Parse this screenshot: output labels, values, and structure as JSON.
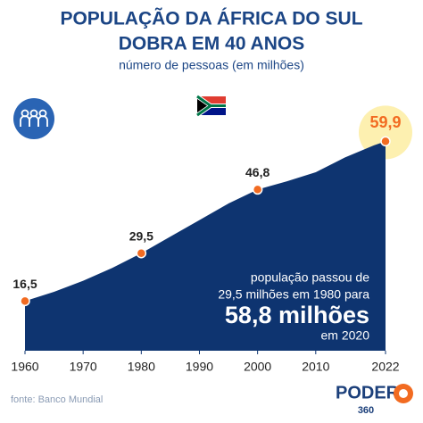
{
  "chart_data": {
    "type": "area",
    "title_lines": [
      "POPULAÇÃO DA ÁFRICA DO SUL",
      "DOBRA EM 40 ANOS"
    ],
    "subtitle": "número de pessoas (em milhões)",
    "x": [
      1960,
      1965,
      1970,
      1975,
      1980,
      1985,
      1990,
      1995,
      2000,
      2005,
      2010,
      2015,
      2020,
      2022
    ],
    "values": [
      16.5,
      19.0,
      22.0,
      25.5,
      29.5,
      34.0,
      38.5,
      43.0,
      46.8,
      49.0,
      51.5,
      55.5,
      58.8,
      59.9
    ],
    "value_labels": [
      "16,5",
      null,
      null,
      null,
      "29,5",
      null,
      null,
      null,
      "46,8",
      null,
      null,
      null,
      null,
      "59,9"
    ],
    "color": "#0e3470",
    "marker_color": "#f26b21",
    "xlim": [
      1960,
      2022
    ],
    "xticks": [
      1960,
      1970,
      1980,
      1990,
      2000,
      2010,
      2022
    ],
    "ylim": [
      3,
      70
    ],
    "annotation": [
      "população passou de",
      "29,5 milhões em 1980 para",
      "58,8 milhões",
      "em 2020"
    ],
    "source": "fonte: Banco Mundial",
    "logo": [
      "PODER",
      "360"
    ]
  }
}
